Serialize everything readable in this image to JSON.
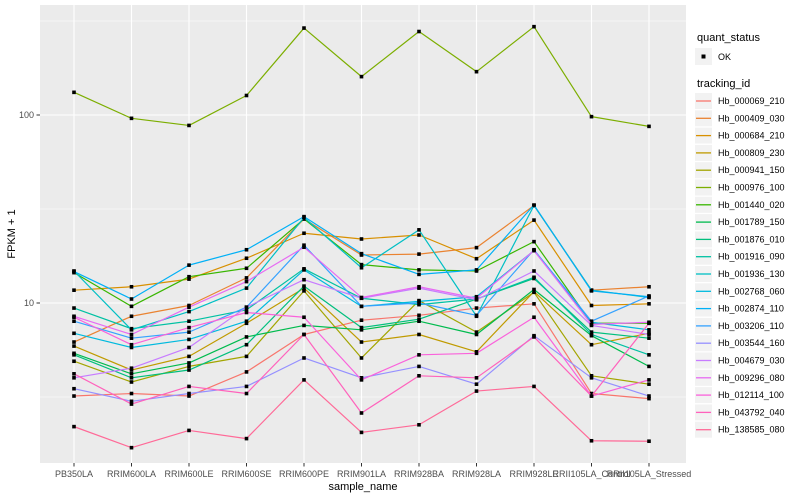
{
  "figure": {
    "panel_bg": "#EBEBEB",
    "grid_color": "#FFFFFF",
    "tick_color": "#333333",
    "tick_label_color": "#4D4D4D",
    "legend_key_bg": "#F2F2F2",
    "marker_color": "#000000"
  },
  "chart_data": {
    "type": "line",
    "title": "",
    "xlabel": "sample_name",
    "ylabel": "FPKM + 1",
    "y_scale": "log10",
    "y_ticks": [
      {
        "value": 100,
        "label": "100"
      },
      {
        "value": 10,
        "label": "10"
      }
    ],
    "y_minor_gridlines": [
      3.162,
      31.623,
      316.228
    ],
    "ylim": [
      1.41,
      385
    ],
    "grid": true,
    "legend_position": "right",
    "marker": {
      "shape": "square",
      "color": "#000000"
    },
    "categories": [
      "PB350LA",
      "RRIM600LA",
      "RRIM600LE",
      "RRIM600SE",
      "RRIM600PE",
      "RRIM901LA",
      "RRIM928BA",
      "RRIM928LA",
      "RRIM928LE",
      "RRII105LA_Control",
      "RRII105LA_Stressed"
    ],
    "legend": {
      "quant_status_title": "quant_status",
      "quant_status_items": [
        {
          "label": "OK"
        }
      ],
      "tracking_title": "tracking_id"
    },
    "series": [
      {
        "name": "Hb_000069_210",
        "color": "#F8766D",
        "values": [
          3.2,
          3.3,
          3.2,
          4.3,
          6.8,
          8.1,
          8.6,
          9.4,
          9.9,
          3.3,
          3.1
        ]
      },
      {
        "name": "Hb_000409_030",
        "color": "#EA8331",
        "values": [
          6.2,
          8.5,
          9.7,
          13.6,
          28.0,
          18.0,
          18.2,
          19.7,
          33.0,
          11.7,
          12.2
        ]
      },
      {
        "name": "Hb_000684_210",
        "color": "#D89000",
        "values": [
          11.7,
          12.2,
          13.4,
          17.3,
          23.5,
          21.9,
          23.0,
          17.2,
          27.6,
          9.7,
          9.9
        ]
      },
      {
        "name": "Hb_000809_230",
        "color": "#C09B00",
        "values": [
          5.9,
          4.4,
          5.2,
          7.8,
          12.0,
          6.2,
          6.8,
          5.5,
          11.5,
          6.0,
          6.9
        ]
      },
      {
        "name": "Hb_000941_150",
        "color": "#A3A500",
        "values": [
          4.9,
          3.8,
          4.6,
          5.2,
          11.6,
          5.1,
          10.3,
          7.0,
          11.4,
          4.1,
          3.7
        ]
      },
      {
        "name": "Hb_000976_100",
        "color": "#7CAE00",
        "values": [
          132,
          96,
          88,
          127,
          290,
          160,
          278,
          170,
          295,
          98,
          87
        ]
      },
      {
        "name": "Hb_001440_020",
        "color": "#39B600",
        "values": [
          14.5,
          9.6,
          13.8,
          15.3,
          28.0,
          16.0,
          15.0,
          14.8,
          21.2,
          7.8,
          7.8
        ]
      },
      {
        "name": "Hb_001789_150",
        "color": "#00BB4E",
        "values": [
          5.4,
          4.2,
          4.8,
          6.6,
          7.6,
          7.2,
          8.0,
          6.8,
          11.8,
          6.7,
          4.6
        ]
      },
      {
        "name": "Hb_001876_010",
        "color": "#00BF7D",
        "values": [
          5.3,
          4.0,
          4.4,
          6.0,
          12.3,
          7.4,
          8.2,
          10.5,
          13.5,
          7.0,
          6.5
        ]
      },
      {
        "name": "Hb_001916_090",
        "color": "#00C1A3",
        "values": [
          9.4,
          7.3,
          8.0,
          9.2,
          15.2,
          10.6,
          9.8,
          10.5,
          13.7,
          6.8,
          5.3
        ]
      },
      {
        "name": "Hb_001936_130",
        "color": "#00BFC4",
        "values": [
          14.8,
          7.2,
          9.0,
          12.0,
          28.5,
          15.4,
          24.5,
          8.5,
          33.0,
          11.7,
          10.7
        ]
      },
      {
        "name": "Hb_002768_060",
        "color": "#00BADE",
        "values": [
          6.9,
          5.8,
          6.4,
          8.0,
          15.0,
          9.6,
          10.2,
          10.8,
          19.0,
          7.9,
          7.2
        ]
      },
      {
        "name": "Hb_002874_110",
        "color": "#00B0F6",
        "values": [
          14.7,
          10.5,
          15.9,
          19.2,
          28.8,
          18.3,
          14.2,
          15.0,
          33.2,
          11.6,
          10.8
        ]
      },
      {
        "name": "Hb_003206_110",
        "color": "#35A2FF",
        "values": [
          8.0,
          6.5,
          7.0,
          9.5,
          20.3,
          9.6,
          10.0,
          8.6,
          19.2,
          8.0,
          10.9
        ]
      },
      {
        "name": "Hb_003544_160",
        "color": "#9590FF",
        "values": [
          3.5,
          3.0,
          3.3,
          3.6,
          5.1,
          4.0,
          4.6,
          3.7,
          6.7,
          4.0,
          3.2
        ]
      },
      {
        "name": "Hb_004679_030",
        "color": "#C77CFF",
        "values": [
          4.0,
          4.5,
          5.8,
          9.5,
          13.3,
          10.6,
          12.0,
          10.4,
          14.8,
          7.6,
          6.8
        ]
      },
      {
        "name": "Hb_009296_080",
        "color": "#E76BF3",
        "values": [
          8.5,
          6.8,
          9.5,
          13.0,
          19.8,
          10.7,
          12.2,
          10.6,
          19.0,
          7.7,
          7.9
        ]
      },
      {
        "name": "Hb_012114_100",
        "color": "#FA62DB",
        "values": [
          8.4,
          6.0,
          7.4,
          8.9,
          8.4,
          3.9,
          5.3,
          5.4,
          8.4,
          3.2,
          3.9
        ]
      },
      {
        "name": "Hb_043792_040",
        "color": "#FF62BC",
        "values": [
          4.2,
          2.9,
          3.6,
          3.3,
          6.8,
          2.6,
          4.1,
          4.0,
          6.6,
          3.2,
          7.8
        ]
      },
      {
        "name": "Hb_138585_080",
        "color": "#FF6A98",
        "values": [
          2.2,
          1.7,
          2.1,
          1.9,
          3.9,
          2.05,
          2.25,
          3.4,
          3.6,
          1.85,
          1.84
        ]
      }
    ]
  }
}
